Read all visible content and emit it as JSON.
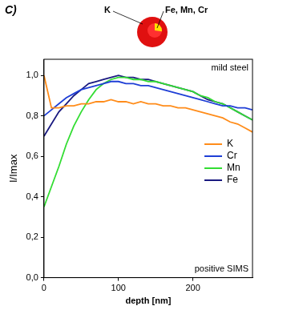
{
  "panel_label": "C)",
  "inset": {
    "labels": [
      "K",
      "Fe, Mn, Cr"
    ]
  },
  "chart_data": {
    "type": "line",
    "x_label": "depth [nm]",
    "y_label": "I/Imax",
    "annotations": [
      "mild steel",
      "positive SIMS"
    ],
    "x": [
      0,
      10,
      20,
      30,
      40,
      50,
      60,
      70,
      80,
      90,
      100,
      110,
      120,
      130,
      140,
      150,
      160,
      170,
      180,
      190,
      200,
      210,
      220,
      230,
      240,
      250,
      260,
      270,
      280
    ],
    "series": [
      {
        "name": "K",
        "color": "#ff8c1a",
        "values": [
          1.0,
          0.84,
          0.84,
          0.85,
          0.85,
          0.86,
          0.86,
          0.87,
          0.87,
          0.88,
          0.87,
          0.87,
          0.86,
          0.87,
          0.86,
          0.86,
          0.85,
          0.85,
          0.84,
          0.84,
          0.83,
          0.82,
          0.81,
          0.8,
          0.79,
          0.77,
          0.76,
          0.74,
          0.72
        ]
      },
      {
        "name": "Cr",
        "color": "#1f3fd6",
        "values": [
          0.8,
          0.83,
          0.86,
          0.89,
          0.91,
          0.93,
          0.94,
          0.95,
          0.96,
          0.97,
          0.97,
          0.96,
          0.96,
          0.95,
          0.95,
          0.94,
          0.93,
          0.92,
          0.91,
          0.9,
          0.89,
          0.88,
          0.87,
          0.86,
          0.85,
          0.85,
          0.84,
          0.84,
          0.83
        ]
      },
      {
        "name": "Mn",
        "color": "#33dd33",
        "values": [
          0.35,
          0.45,
          0.55,
          0.66,
          0.75,
          0.82,
          0.88,
          0.93,
          0.96,
          0.98,
          0.99,
          0.99,
          0.98,
          0.98,
          0.97,
          0.97,
          0.96,
          0.95,
          0.94,
          0.93,
          0.92,
          0.9,
          0.89,
          0.87,
          0.86,
          0.84,
          0.82,
          0.8,
          0.78
        ]
      },
      {
        "name": "Fe",
        "color": "#1a1a80",
        "values": [
          0.7,
          0.76,
          0.82,
          0.86,
          0.9,
          0.93,
          0.96,
          0.97,
          0.98,
          0.99,
          1.0,
          0.99,
          0.99,
          0.98,
          0.98,
          0.97,
          0.96,
          0.95,
          0.94,
          0.93,
          0.92,
          0.9,
          0.88,
          0.87,
          0.86,
          0.84,
          0.82,
          0.8,
          0.78
        ]
      }
    ],
    "xlim": [
      0,
      280
    ],
    "xticks": [
      0,
      100,
      200
    ],
    "ylim": [
      0,
      1.08
    ],
    "yticks": [
      {
        "value": 0,
        "label": "0,0"
      },
      {
        "value": 0.2,
        "label": "0,2"
      },
      {
        "value": 0.4,
        "label": "0,4"
      },
      {
        "value": 0.6,
        "label": "0,6"
      },
      {
        "value": 0.8,
        "label": "0,8"
      },
      {
        "value": 1.0,
        "label": "1,0"
      }
    ],
    "grid": false,
    "legend": "right"
  }
}
